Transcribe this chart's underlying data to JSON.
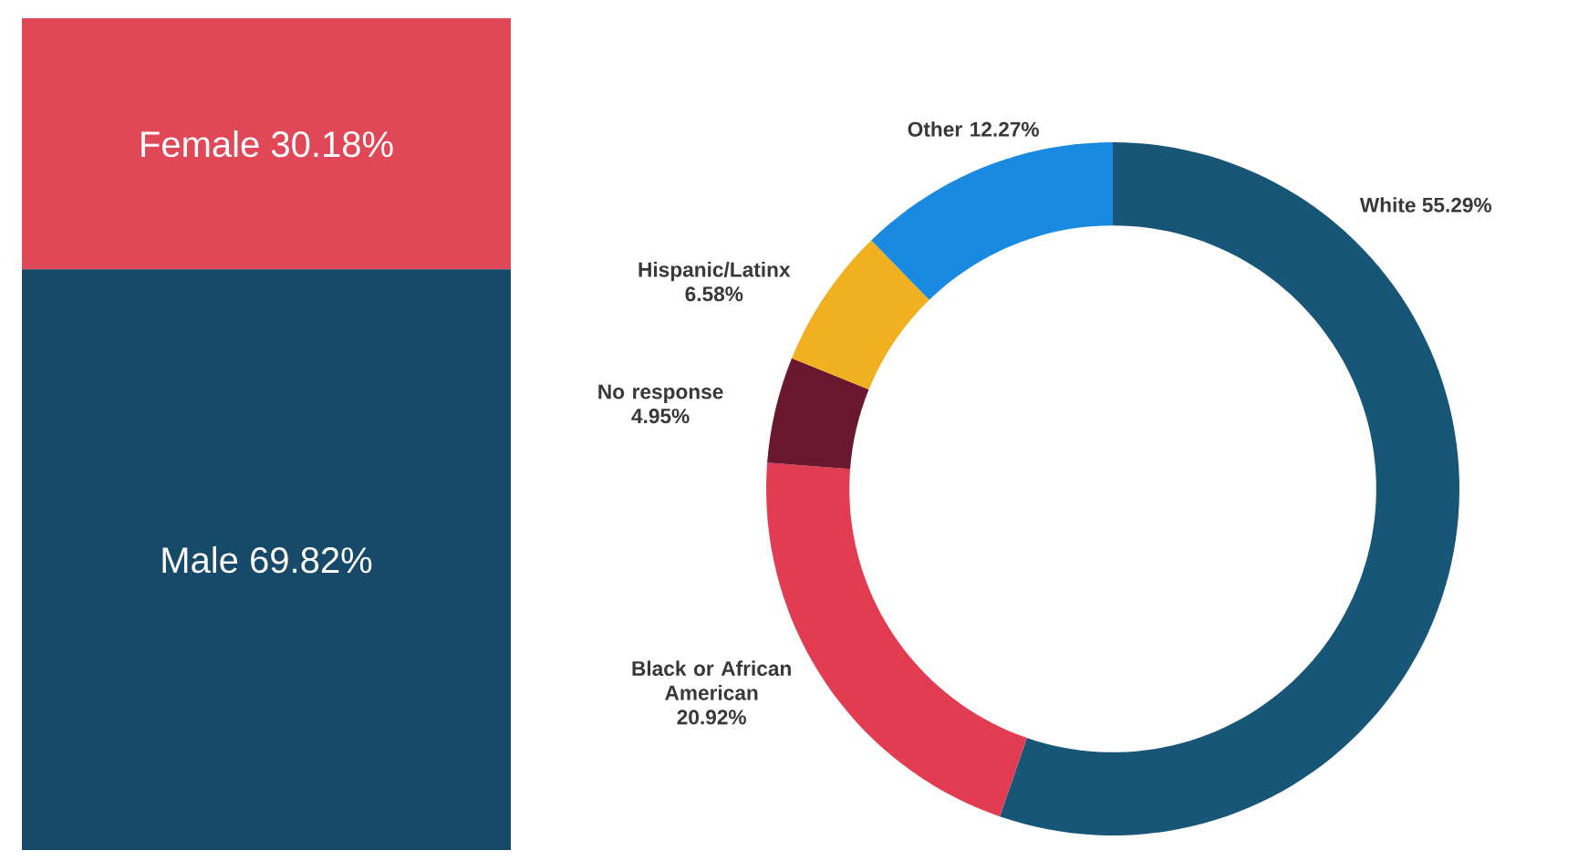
{
  "chart_data": [
    {
      "type": "bar",
      "stacked": true,
      "categories": [
        null
      ],
      "series": [
        {
          "name": "Male",
          "color": "#164a68",
          "values": [
            69.82
          ],
          "value_labels": [
            "69.82%"
          ]
        },
        {
          "name": "Female",
          "color": "#e04858",
          "values": [
            30.18
          ],
          "value_labels": [
            "30.18%"
          ]
        }
      ]
    },
    {
      "type": "donut",
      "categories": [
        "White",
        "Black or African American",
        "No response",
        "Hispanic/Latinx",
        "Other"
      ],
      "values": [
        55.29,
        20.92,
        4.95,
        6.58,
        12.27
      ],
      "value_labels": [
        "55.29%",
        "20.92%",
        "4.95%",
        "6.58%",
        "12.27%"
      ],
      "colors": [
        "#185678",
        "#e23c52",
        "#6a1830",
        "#f0b020",
        "#1a8ae0"
      ]
    }
  ]
}
